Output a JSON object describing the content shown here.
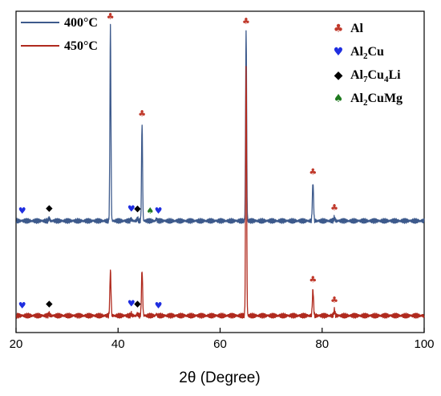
{
  "chart_data": {
    "type": "line",
    "xlabel": "2θ (Degree)",
    "xlim": [
      20,
      100
    ],
    "xticks": [
      20,
      40,
      60,
      80,
      100
    ],
    "ylabel": "",
    "grid": false,
    "series": [
      {
        "name": "400°C",
        "color": "#3d5a8c",
        "baseline": 2.0,
        "peaks": [
          {
            "x": 26.5,
            "h": 0.06
          },
          {
            "x": 38.5,
            "h": 4.1
          },
          {
            "x": 42.6,
            "h": 0.04
          },
          {
            "x": 43.8,
            "h": 0.05
          },
          {
            "x": 44.7,
            "h": 2.05
          },
          {
            "x": 47.5,
            "h": 0.04
          },
          {
            "x": 65.1,
            "h": 4.0
          },
          {
            "x": 78.2,
            "h": 0.82
          },
          {
            "x": 82.4,
            "h": 0.07
          }
        ]
      },
      {
        "name": "450°C",
        "color": "#b02a1e",
        "baseline": 0.0,
        "peaks": [
          {
            "x": 26.5,
            "h": 0.04
          },
          {
            "x": 38.5,
            "h": 0.95
          },
          {
            "x": 42.6,
            "h": 0.04
          },
          {
            "x": 43.8,
            "h": 0.04
          },
          {
            "x": 44.7,
            "h": 0.95
          },
          {
            "x": 47.5,
            "h": 0.03
          },
          {
            "x": 65.1,
            "h": 5.25
          },
          {
            "x": 78.2,
            "h": 0.55
          },
          {
            "x": 82.4,
            "h": 0.12
          }
        ]
      }
    ],
    "phase_legend": [
      {
        "symbol": "♣",
        "color": "#c0392b",
        "base": "Al",
        "parts": [
          {
            "t": "Al",
            "sub": false
          }
        ]
      },
      {
        "symbol": "♥",
        "color": "#1f2ee0",
        "base": "Al2Cu",
        "parts": [
          {
            "t": "Al",
            "sub": false
          },
          {
            "t": "2",
            "sub": true
          },
          {
            "t": "Cu",
            "sub": false
          }
        ]
      },
      {
        "symbol": "◆",
        "color": "#000000",
        "base": "Al7Cu4Li",
        "parts": [
          {
            "t": "Al",
            "sub": false
          },
          {
            "t": "7",
            "sub": true
          },
          {
            "t": "Cu",
            "sub": false
          },
          {
            "t": "4",
            "sub": true
          },
          {
            "t": "Li",
            "sub": false
          }
        ]
      },
      {
        "symbol": "♠",
        "color": "#1f7a1f",
        "base": "Al2CuMg",
        "parts": [
          {
            "t": "Al",
            "sub": false
          },
          {
            "t": "2",
            "sub": true
          },
          {
            "t": "CuMg",
            "sub": false
          }
        ]
      }
    ],
    "phase_markers": [
      {
        "series": 0,
        "x": 21.2,
        "phase": "Al2Cu",
        "offset": 0.12
      },
      {
        "series": 0,
        "x": 26.5,
        "phase": "Al7Cu4Li",
        "offset": 0.12
      },
      {
        "series": 0,
        "x": 38.5,
        "phase": "Al",
        "offset": 0.12
      },
      {
        "series": 0,
        "x": 42.6,
        "phase": "Al2Cu",
        "offset": 0.12
      },
      {
        "series": 0,
        "x": 43.8,
        "phase": "Al7Cu4Li",
        "offset": 0.12
      },
      {
        "series": 0,
        "x": 44.7,
        "phase": "Al",
        "offset": 0.12
      },
      {
        "series": 0,
        "x": 46.3,
        "phase": "Al2CuMg",
        "offset": 0.12
      },
      {
        "series": 0,
        "x": 47.9,
        "phase": "Al2Cu",
        "offset": 0.12
      },
      {
        "series": 0,
        "x": 65.1,
        "phase": "Al",
        "offset": 0.12
      },
      {
        "series": 0,
        "x": 78.2,
        "phase": "Al",
        "offset": 0.12
      },
      {
        "series": 0,
        "x": 82.4,
        "phase": "Al",
        "offset": 0.12
      },
      {
        "series": 1,
        "x": 21.2,
        "phase": "Al2Cu",
        "offset": 0.12
      },
      {
        "series": 1,
        "x": 26.5,
        "phase": "Al7Cu4Li",
        "offset": 0.12
      },
      {
        "series": 1,
        "x": 42.6,
        "phase": "Al2Cu",
        "offset": 0.12
      },
      {
        "series": 1,
        "x": 43.8,
        "phase": "Al7Cu4Li",
        "offset": 0.12
      },
      {
        "series": 1,
        "x": 47.9,
        "phase": "Al2Cu",
        "offset": 0.12
      },
      {
        "series": 1,
        "x": 78.2,
        "phase": "Al",
        "offset": 0.12
      },
      {
        "series": 1,
        "x": 82.4,
        "phase": "Al",
        "offset": 0.12
      }
    ]
  }
}
